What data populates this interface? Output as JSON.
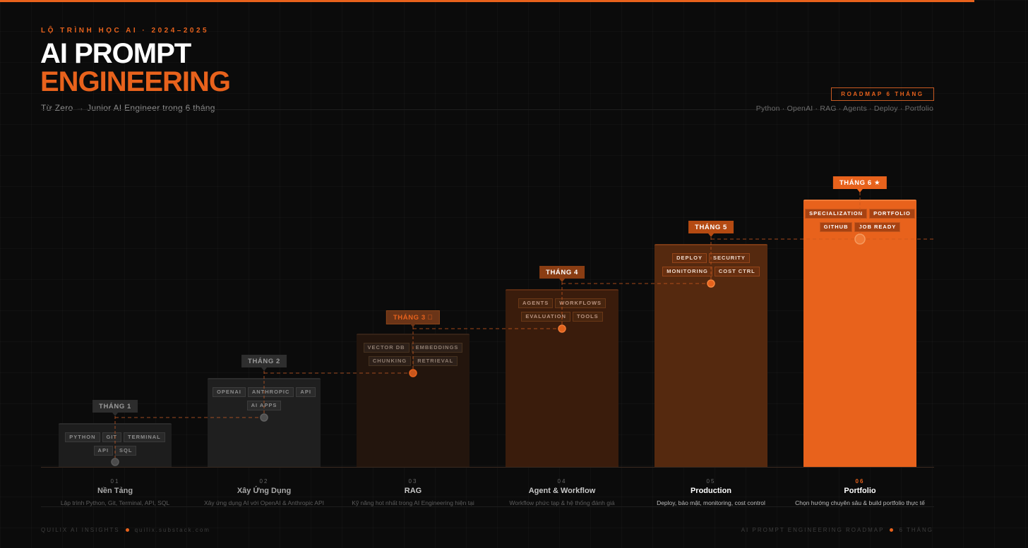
{
  "header": {
    "eyebrow": "LỘ TRÌNH HỌC AI · 2024–2025",
    "title_line1": "AI PROMPT",
    "title_line2": "ENGINEERING",
    "subtitle": "Từ Zero → Junior AI Engineer trong 6 tháng",
    "badge": "ROADMAP 6 THÁNG",
    "tech_line": "Python · OpenAI · RAG · Agents · Deploy · Portfolio"
  },
  "colors": {
    "accent": "#e8621c",
    "background": "#0b0b0b"
  },
  "steps": [
    {
      "number": "01",
      "month": "THÁNG 1",
      "name": "Nền Tảng",
      "description": "Lập trình Python, Git, Terminal, API, SQL",
      "tags": [
        "PYTHON",
        "GIT",
        "TERMINAL",
        "API",
        "SQL"
      ],
      "level": 1
    },
    {
      "number": "02",
      "month": "THÁNG 2",
      "name": "Xây Ứng Dụng",
      "description": "Xây ứng dụng AI với OpenAI & Anthropic API",
      "tags": [
        "OPENAI",
        "ANTHROPIC",
        "API",
        "AI APPS"
      ],
      "level": 2
    },
    {
      "number": "03",
      "month": "THÁNG 3 ⃞",
      "name": "RAG",
      "description": "Kỹ năng hot nhất trong AI Engineering hiện tại",
      "tags": [
        "VECTOR DB",
        "EMBEDDINGS",
        "CHUNKING",
        "RETRIEVAL"
      ],
      "level": 3
    },
    {
      "number": "04",
      "month": "THÁNG 4",
      "name": "Agent & Workflow",
      "description": "Workflow phức tạp & hệ thống đánh giá",
      "tags": [
        "AGENTS",
        "WORKFLOWS",
        "EVALUATION",
        "TOOLS"
      ],
      "level": 4
    },
    {
      "number": "05",
      "month": "THÁNG 5",
      "name": "Production",
      "description": "Deploy, bảo mật, monitoring, cost control",
      "tags": [
        "DEPLOY",
        "SECURITY",
        "MONITORING",
        "COST CTRL"
      ],
      "level": 5
    },
    {
      "number": "06",
      "month": "THÁNG 6 ★",
      "name": "Portfolio",
      "description": "Chọn hướng chuyên sâu & build portfolio thực tế",
      "tags": [
        "SPECIALIZATION",
        "PORTFOLIO",
        "GITHUB",
        "JOB READY"
      ],
      "level": 6
    }
  ],
  "footer": {
    "brand": "QUILIX AI INSIGHTS",
    "site": "quilix.substack.com",
    "roadmap": "AI PROMPT ENGINEERING ROADMAP",
    "duration": "6 THÁNG"
  }
}
